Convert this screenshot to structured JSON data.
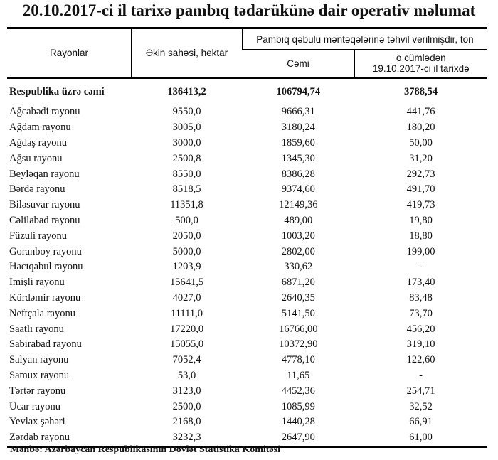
{
  "title": "20.10.2017-ci il tarixə pambıq tədarükünə dair operativ məlumat",
  "headers": {
    "region": "Rayonlar",
    "area": "Əkin sahəsi, hektar",
    "delivered": "Pambıq qəbulu məntəqələrinə təhvil verilmişdir, ton",
    "total": "Cəmi",
    "including_line1": "o cümlədən",
    "including_line2": "19.10.2017-ci il tarixdə"
  },
  "total_row": [
    "Respublika üzrə cəmi",
    "136413,2",
    "106794,74",
    "3788,54"
  ],
  "rows": [
    [
      "Ağcabədi rayonu",
      "9550,0",
      "9666,31",
      "441,76"
    ],
    [
      "Ağdam rayonu",
      "3005,0",
      "3180,24",
      "180,20"
    ],
    [
      "Ağdaş rayonu",
      "3000,0",
      "1859,60",
      "50,00"
    ],
    [
      "Ağsu rayonu",
      "2500,8",
      "1345,30",
      "31,20"
    ],
    [
      "Beyləqan rayonu",
      "8550,0",
      "8386,28",
      "292,73"
    ],
    [
      "Bərdə rayonu",
      "8518,5",
      "9374,60",
      "491,70"
    ],
    [
      "Biləsuvar rayonu",
      "11351,8",
      "12149,36",
      "419,73"
    ],
    [
      "Cəlilabad rayonu",
      "500,0",
      "489,00",
      "19,80"
    ],
    [
      "Füzuli rayonu",
      "2050,0",
      "1003,20",
      "18,80"
    ],
    [
      "Goranboy rayonu",
      "5000,0",
      "2802,00",
      "199,00"
    ],
    [
      "Hacıqabul rayonu",
      "1203,9",
      "330,62",
      "-"
    ],
    [
      "İmişli rayonu",
      "15641,5",
      "6871,20",
      "173,40"
    ],
    [
      "Kürdəmir rayonu",
      "4027,0",
      "2640,35",
      "83,48"
    ],
    [
      "Neftçala rayonu",
      "11111,0",
      "5141,50",
      "73,70"
    ],
    [
      "Saatlı rayonu",
      "17220,0",
      "16766,00",
      "456,20"
    ],
    [
      "Sabirabad rayonu",
      "15055,0",
      "10372,90",
      "319,10"
    ],
    [
      "Salyan rayonu",
      "7052,4",
      "4778,10",
      "122,60"
    ],
    [
      "Samux rayonu",
      "53,0",
      "11,65",
      "-"
    ],
    [
      "Tərtər rayonu",
      "3123,0",
      "4452,36",
      "254,71"
    ],
    [
      "Ucar rayonu",
      "2500,0",
      "1085,99",
      "32,52"
    ],
    [
      "Yevlax şəhəri",
      "2168,0",
      "1440,28",
      "66,91"
    ],
    [
      "Zərdab rayonu",
      "3232,3",
      "2647,90",
      "61,00"
    ]
  ],
  "source": "Mənbə: Azərbaycan Respublikasının Dövlət Statistika Komitəsi"
}
